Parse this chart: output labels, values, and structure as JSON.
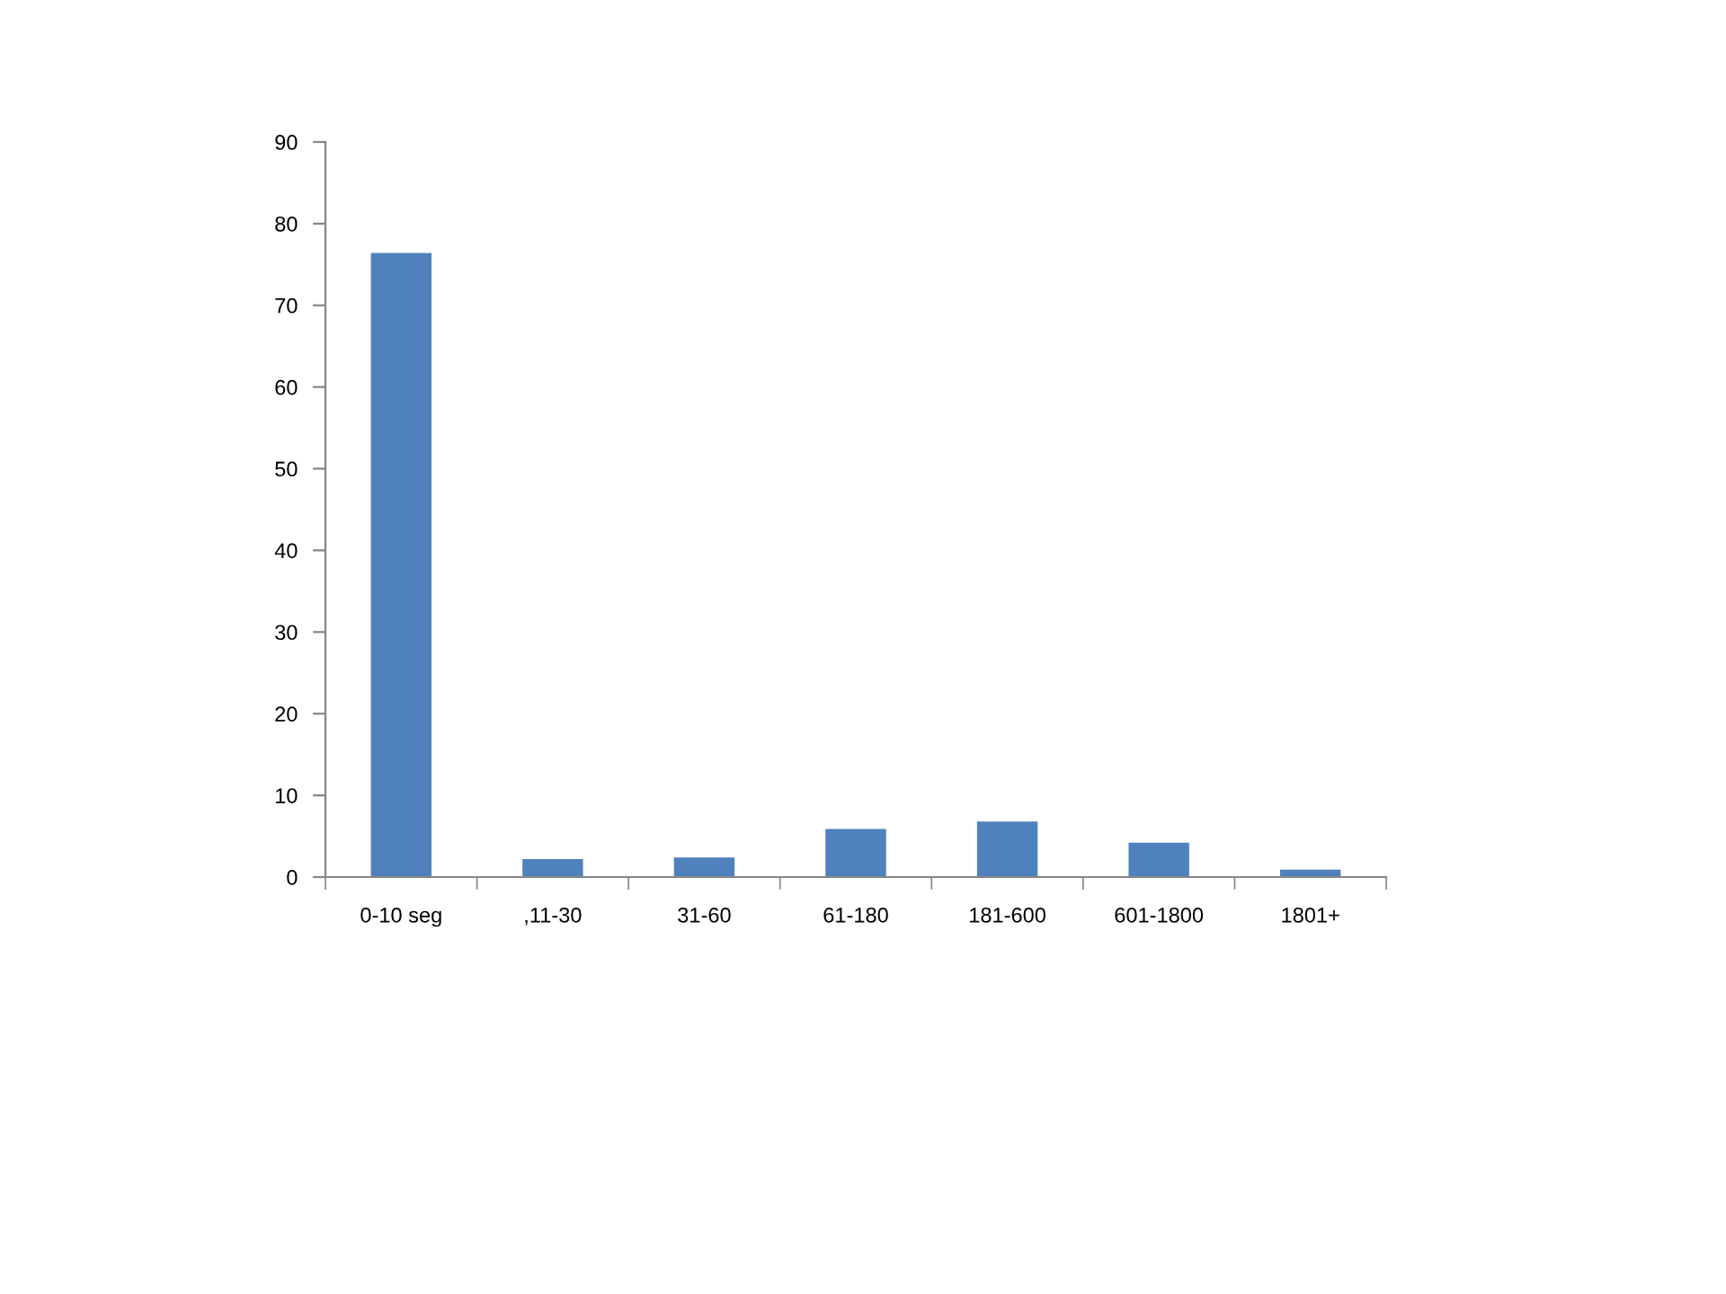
{
  "chart_data": {
    "type": "bar",
    "categories": [
      "0-10 seg",
      ",11-30",
      "31-60",
      "61-180",
      "181-600",
      "601-1800",
      "1801+"
    ],
    "values": [
      76.4,
      2.2,
      2.4,
      5.9,
      6.8,
      4.2,
      0.9
    ],
    "color": "#4f81bd",
    "ylim": [
      0,
      90
    ],
    "yticks": [
      0,
      10,
      20,
      30,
      40,
      50,
      60,
      70,
      80,
      90
    ],
    "grid": false,
    "legend": false
  }
}
